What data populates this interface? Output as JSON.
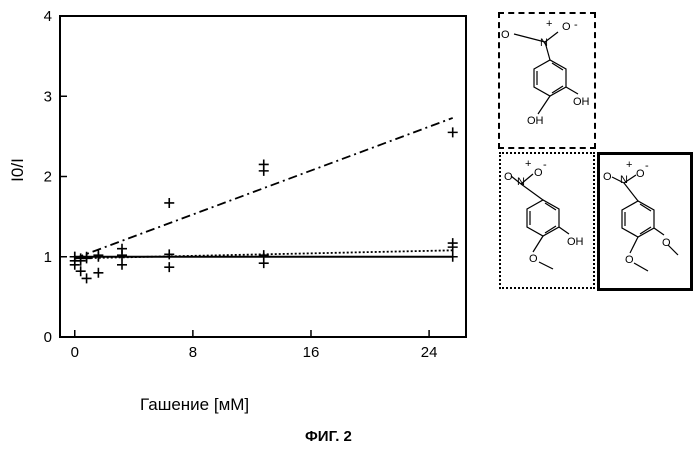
{
  "chart_data": {
    "type": "scatter",
    "xlabel": "Гашение [мМ]",
    "ylabel": "I0/I",
    "xlim": [
      -1,
      26.5
    ],
    "ylim": [
      0,
      4
    ],
    "xticks": [
      "0",
      "8",
      "16",
      "24"
    ],
    "yticks": [
      "0",
      "1",
      "2",
      "3",
      "4"
    ],
    "grid": false,
    "series": [
      {
        "line_style": "dash-dot",
        "points": [
          {
            "x": 0,
            "y": 1.0
          },
          {
            "x": 0,
            "y": 0.95
          },
          {
            "x": 0.4,
            "y": 0.95
          },
          {
            "x": 0.8,
            "y": 0.98
          },
          {
            "x": 1.6,
            "y": 1.0
          },
          {
            "x": 3.2,
            "y": 1.1
          },
          {
            "x": 6.4,
            "y": 1.67
          },
          {
            "x": 12.8,
            "y": 2.15
          },
          {
            "x": 12.8,
            "y": 2.07
          },
          {
            "x": 25.6,
            "y": 2.55
          }
        ],
        "fit": [
          {
            "x": 0,
            "y": 0.98
          },
          {
            "x": 25.6,
            "y": 2.73
          }
        ]
      },
      {
        "line_style": "dotted",
        "points": [
          {
            "x": 0,
            "y": 1.0
          },
          {
            "x": 0.4,
            "y": 0.98
          },
          {
            "x": 0.8,
            "y": 1.0
          },
          {
            "x": 1.6,
            "y": 1.02
          },
          {
            "x": 3.2,
            "y": 1.02
          },
          {
            "x": 6.4,
            "y": 1.03
          },
          {
            "x": 12.8,
            "y": 1.02
          },
          {
            "x": 25.6,
            "y": 1.17
          }
        ],
        "fit": [
          {
            "x": 0,
            "y": 0.98
          },
          {
            "x": 25.6,
            "y": 1.08
          }
        ]
      },
      {
        "line_style": "solid",
        "points": [
          {
            "x": 0,
            "y": 0.9
          },
          {
            "x": 0.4,
            "y": 0.82
          },
          {
            "x": 0.8,
            "y": 0.73
          },
          {
            "x": 1.6,
            "y": 0.8
          },
          {
            "x": 3.2,
            "y": 0.9
          },
          {
            "x": 6.4,
            "y": 0.87
          },
          {
            "x": 12.8,
            "y": 0.92
          },
          {
            "x": 25.6,
            "y": 1.12
          },
          {
            "x": 25.6,
            "y": 1.0
          }
        ],
        "fit": [
          {
            "x": 0,
            "y": 1.0
          },
          {
            "x": 25.6,
            "y": 1.0
          }
        ]
      }
    ]
  },
  "caption": "ФИГ. 2",
  "structures": [
    {
      "frame": "dash-dot",
      "labels": [
        "O",
        "N",
        "O",
        "OH",
        "OH"
      ]
    },
    {
      "frame": "dotted",
      "labels": [
        "O",
        "N",
        "O",
        "OH",
        "O"
      ]
    },
    {
      "frame": "solid",
      "labels": [
        "O",
        "N",
        "O",
        "O",
        "O"
      ]
    }
  ],
  "charges": [
    "+",
    "-"
  ]
}
